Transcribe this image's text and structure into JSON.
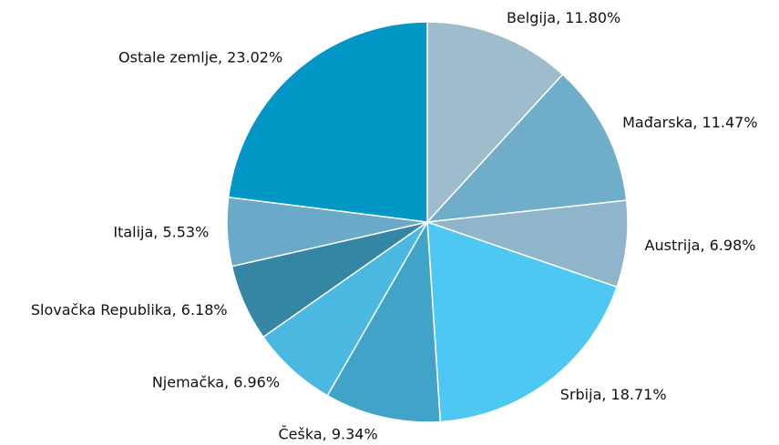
{
  "chart_data": {
    "type": "pie",
    "values": [
      11.8,
      11.47,
      6.98,
      18.71,
      9.34,
      6.96,
      6.18,
      5.53,
      23.02
    ],
    "value_labels": [
      "Belgija, 11.80%",
      "Mađarska, 11.47%",
      "Austrija, 6.98%",
      "Srbija, 18.71%",
      "Češka, 9.34%",
      "Njemačka, 6.96%",
      "Slovačka Republika, 6.18%",
      "Italija, 5.53%",
      "Ostale zemlje, 23.02%"
    ],
    "colors": [
      "#9fbccc",
      "#6fadc9",
      "#8fb5cb",
      "#4ec8f2",
      "#41a3c8",
      "#4ab8e0",
      "#3486a4",
      "#6aaac8",
      "#0397c6"
    ]
  }
}
